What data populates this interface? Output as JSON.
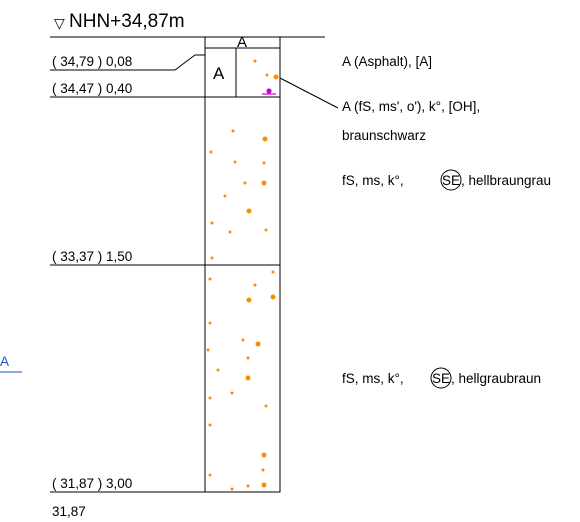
{
  "header": {
    "level_symbol": "▽",
    "elevation": "NHN+34,87m"
  },
  "layers": [
    {
      "label": "( 34,79 ) 0,08"
    },
    {
      "label": "( 34,47 ) 0,40"
    },
    {
      "label": "( 33,37 ) 1,50"
    },
    {
      "label": "( 31,87 ) 3,00"
    }
  ],
  "bottom_elevation": "31,87",
  "symbol_text": "A",
  "descriptions": {
    "asphalt": "A (Asphalt), [A]",
    "fill_line1": "A (fS, ms', o'), k°, [OH],",
    "fill_line2": "braunschwarz",
    "sand1_prefix": "fS, ms, k°,",
    "sand1_circle": "SE",
    "sand1_suffix": ", hellbraungrau",
    "sand2_prefix": "fS, ms, k°,",
    "sand2_circle": "SE",
    "sand2_suffix": ", hellgraubraun"
  },
  "side_marker": "A",
  "colors": {
    "line": "#000000",
    "dot_orange": "#f39200",
    "marker_magenta": "#cc00cc",
    "link_blue": "#1a56c8"
  }
}
